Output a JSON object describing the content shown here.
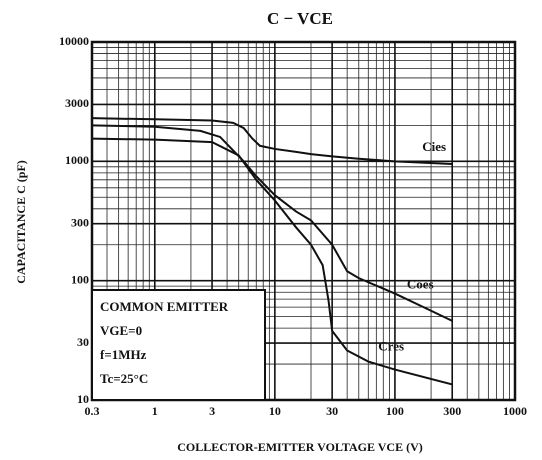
{
  "chart_data": {
    "type": "line",
    "title": "C − VCE",
    "xlabel": "COLLECTOR-EMITTER VOLTAGE VCE (V)",
    "ylabel": "CAPACITANCE C (pF)",
    "xlog": true,
    "ylog": true,
    "grid": true,
    "xlim": [
      0.3,
      1000
    ],
    "ylim": [
      10,
      10000
    ],
    "xticks": [
      0.3,
      1,
      3,
      10,
      30,
      100,
      300,
      1000
    ],
    "yticks": [
      10,
      30,
      100,
      300,
      1000,
      3000,
      10000
    ],
    "xgrid": [
      0.4,
      0.5,
      0.6,
      0.7,
      0.8,
      0.9,
      2,
      4,
      5,
      6,
      7,
      8,
      9,
      20,
      40,
      50,
      60,
      70,
      80,
      90,
      200,
      400,
      500,
      600,
      700,
      800,
      900
    ],
    "ygrid": [
      20,
      40,
      50,
      60,
      70,
      80,
      90,
      200,
      400,
      500,
      600,
      700,
      800,
      900,
      2000,
      4000,
      5000,
      6000,
      7000,
      8000,
      9000
    ],
    "annotations": [
      "COMMON EMITTER",
      "VGE=0",
      "f=1MHz",
      "Tc=25°C"
    ],
    "series": [
      {
        "name": "Cies",
        "color": "#111111",
        "x": [
          0.3,
          1,
          3,
          4.5,
          5.5,
          6.5,
          7.5,
          10,
          15,
          20,
          30,
          50,
          100,
          300
        ],
        "values": [
          2300,
          2250,
          2200,
          2100,
          1900,
          1550,
          1350,
          1270,
          1200,
          1150,
          1100,
          1050,
          1000,
          950
        ]
      },
      {
        "name": "Coes",
        "color": "#111111",
        "x": [
          0.3,
          1,
          2.4,
          3.5,
          5.5,
          7,
          10,
          15,
          20,
          30,
          40,
          50,
          100,
          200,
          300
        ],
        "values": [
          2000,
          1950,
          1800,
          1600,
          1000,
          750,
          520,
          380,
          320,
          200,
          120,
          105,
          78,
          56,
          46
        ]
      },
      {
        "name": "Cres",
        "color": "#111111",
        "x": [
          0.3,
          1,
          3,
          5,
          7,
          10,
          15,
          20,
          25,
          28,
          30,
          40,
          60,
          100,
          300
        ],
        "values": [
          1550,
          1520,
          1450,
          1120,
          700,
          470,
          280,
          200,
          135,
          68,
          38,
          26,
          21,
          18,
          13.5
        ]
      }
    ]
  }
}
